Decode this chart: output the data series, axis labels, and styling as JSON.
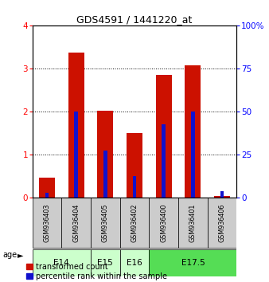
{
  "title": "GDS4591 / 1441220_at",
  "samples": [
    "GSM936403",
    "GSM936404",
    "GSM936405",
    "GSM936402",
    "GSM936400",
    "GSM936401",
    "GSM936406"
  ],
  "transformed_counts": [
    0.47,
    3.37,
    2.02,
    1.5,
    2.85,
    3.07,
    0.05
  ],
  "percentile_ranks": [
    0.12,
    2.0,
    1.1,
    0.5,
    1.7,
    2.0,
    0.15
  ],
  "age_group_spans": {
    "E14": [
      0,
      1
    ],
    "E15": [
      2,
      2
    ],
    "E16": [
      3,
      3
    ],
    "E17.5": [
      4,
      6
    ]
  },
  "age_group_colors": {
    "E14": "#ccffcc",
    "E15": "#ccffcc",
    "E16": "#ccffcc",
    "E17.5": "#55dd55"
  },
  "age_group_order": [
    "E14",
    "E15",
    "E16",
    "E17.5"
  ],
  "bar_color_red": "#cc1100",
  "bar_color_blue": "#1111cc",
  "ylim_left": [
    0,
    4
  ],
  "ylim_right": [
    0,
    100
  ],
  "yticks_left": [
    0,
    1,
    2,
    3,
    4
  ],
  "yticks_right": [
    0,
    25,
    50,
    75,
    100
  ],
  "red_bar_width": 0.55,
  "blue_bar_width": 0.12,
  "background_color": "#ffffff",
  "grid_color": "#000000",
  "legend_items": [
    "transformed count",
    "percentile rank within the sample"
  ],
  "sample_bg": "#cccccc",
  "title_fontsize": 9,
  "tick_fontsize": 7.5,
  "sample_fontsize": 5.8,
  "age_fontsize": 7.5,
  "legend_fontsize": 7
}
